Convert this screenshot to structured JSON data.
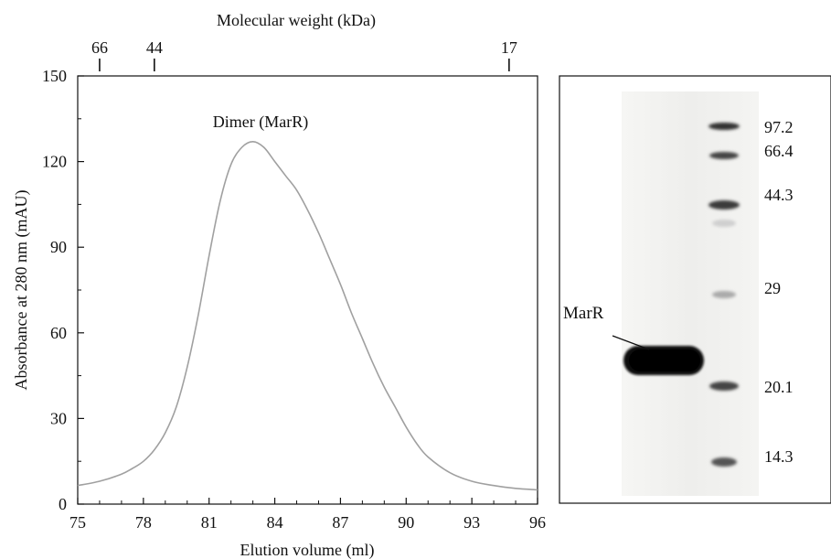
{
  "chart_data": [
    {
      "type": "line",
      "xlabel": "Elution volume (ml)",
      "ylabel": "Absorbance at 280 nm (mAU)",
      "xlim": [
        75,
        96
      ],
      "ylim": [
        0,
        150
      ],
      "x_ticks": [
        75,
        78,
        81,
        84,
        87,
        90,
        93,
        96
      ],
      "y_ticks": [
        0,
        30,
        60,
        90,
        120,
        150
      ],
      "grid": false,
      "top_axis": {
        "label": "Molecular weight (kDa)",
        "ticks": [
          {
            "label": "66",
            "elution_volume": 76.0
          },
          {
            "label": "44",
            "elution_volume": 78.5
          },
          {
            "label": "17",
            "elution_volume": 94.7
          }
        ]
      },
      "annotation": "Dimer (MarR)",
      "series": [
        {
          "color": "#a0a0a0",
          "x": [
            75,
            76,
            77,
            77.5,
            78,
            78.5,
            79,
            79.5,
            80,
            80.5,
            81,
            81.5,
            82,
            82.5,
            83,
            83.5,
            84,
            84.5,
            85,
            85.5,
            86,
            86.5,
            87,
            87.5,
            88,
            88.5,
            89,
            89.5,
            90,
            90.5,
            91,
            92,
            93,
            94,
            95,
            96
          ],
          "y": [
            6.5,
            8,
            10.5,
            12.5,
            15,
            19,
            25,
            34,
            48,
            66,
            87,
            106,
            119,
            125,
            127,
            125,
            120,
            115,
            110,
            103,
            95,
            86,
            77,
            67,
            58,
            49,
            41,
            34,
            27,
            21,
            16.5,
            11,
            8,
            6.5,
            5.5,
            5
          ]
        }
      ]
    },
    {
      "type": "gel",
      "lane_label": "MarR",
      "marker_labels": [
        "97.2",
        "66.4",
        "44.3",
        "29",
        "20.1",
        "14.3"
      ]
    }
  ]
}
